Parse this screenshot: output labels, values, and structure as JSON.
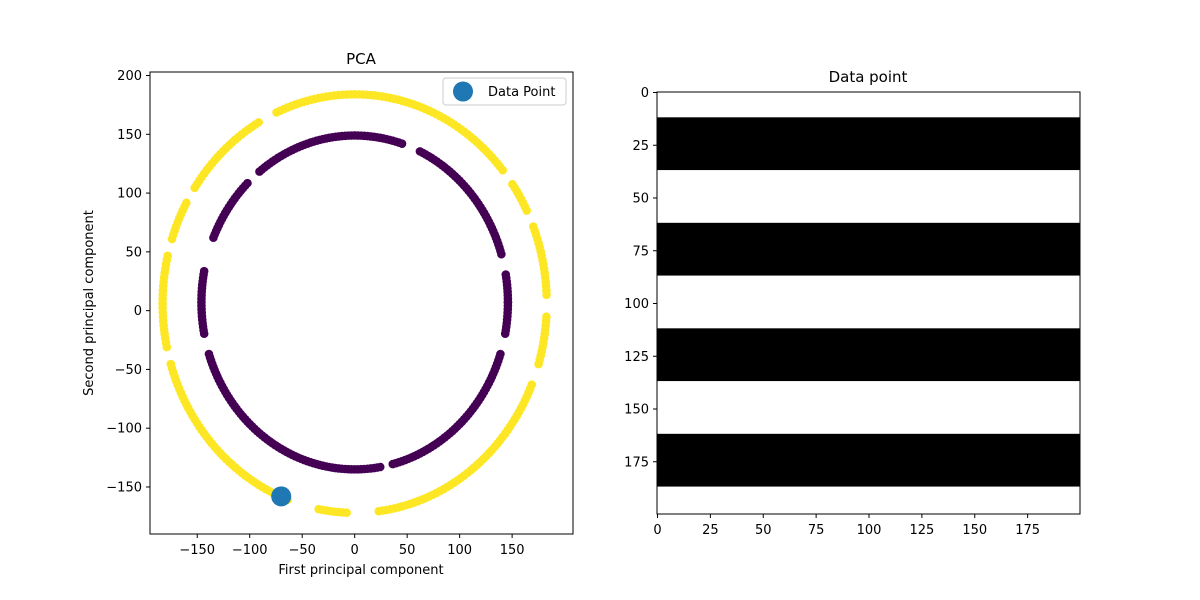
{
  "chart_data": [
    {
      "type": "scatter",
      "title": "PCA",
      "xlabel": "First principal component",
      "ylabel": "Second principal component",
      "xlim": [
        -195,
        208
      ],
      "ylim": [
        -190,
        203
      ],
      "xticks": [
        -150,
        -100,
        -50,
        0,
        50,
        100,
        150
      ],
      "yticks": [
        -150,
        -100,
        -50,
        0,
        50,
        100,
        150,
        200
      ],
      "xtick_labels": [
        "−150",
        "−100",
        "−50",
        "0",
        "50",
        "100",
        "150"
      ],
      "ytick_labels": [
        "−150",
        "−100",
        "−50",
        "0",
        "50",
        "100",
        "150",
        "200"
      ],
      "grid": false,
      "legend": {
        "position": "top-right",
        "entries": [
          "Data Point"
        ]
      },
      "series": [
        {
          "color": "#fde725",
          "ring": {
            "center": [
              0,
              6
            ],
            "rx": 183,
            "ry": 178
          },
          "gaps_deg": [
            [
              250,
              258
            ],
            [
              268,
              276
            ],
            [
              22,
              26
            ],
            [
              35,
              39
            ],
            [
              115,
              119
            ],
            [
              147,
              151
            ],
            [
              162,
              166
            ],
            [
              192,
              196
            ],
            [
              338,
              342
            ],
            [
              357,
              2
            ]
          ]
        },
        {
          "color": "#440154",
          "ring": {
            "center": [
              0,
              7
            ],
            "rx": 146,
            "ry": 142
          },
          "gaps_deg": [
            [
              280,
              284
            ],
            [
              10,
              16
            ],
            [
              343,
              349
            ],
            [
              66,
              71
            ],
            [
              129,
              134
            ],
            [
              158,
              168
            ],
            [
              191,
              197
            ]
          ]
        }
      ],
      "highlight": {
        "name": "Data Point",
        "x": -70,
        "y": -158,
        "color": "#1f77b4"
      }
    },
    {
      "type": "heatmap",
      "title": "Data point",
      "xlim": [
        0,
        200
      ],
      "ylim": [
        200,
        0
      ],
      "xticks": [
        0,
        25,
        50,
        75,
        100,
        125,
        150,
        175
      ],
      "yticks": [
        0,
        25,
        50,
        75,
        100,
        125,
        150,
        175
      ],
      "xtick_labels": [
        "0",
        "25",
        "50",
        "75",
        "100",
        "125",
        "150",
        "175"
      ],
      "ytick_labels": [
        "0",
        "25",
        "50",
        "75",
        "100",
        "125",
        "150",
        "175"
      ],
      "colormap": "gray",
      "black_bands_rows": [
        [
          12,
          37
        ],
        [
          62,
          87
        ],
        [
          112,
          137
        ],
        [
          162,
          187
        ]
      ]
    }
  ]
}
